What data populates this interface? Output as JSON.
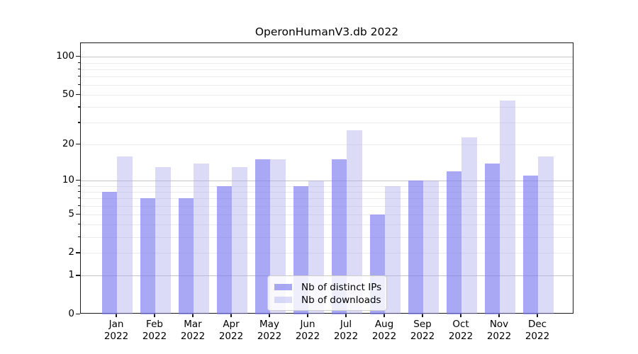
{
  "chart_data": {
    "type": "bar",
    "title": "OperonHumanV3.db 2022",
    "categories": [
      "Jan",
      "Feb",
      "Mar",
      "Apr",
      "May",
      "Jun",
      "Jul",
      "Aug",
      "Sep",
      "Oct",
      "Nov",
      "Dec"
    ],
    "year_label": "2022",
    "series": [
      {
        "name": "Nb of distinct IPs",
        "values": [
          8,
          7,
          7,
          9,
          15,
          9,
          15,
          5,
          10,
          12,
          14,
          11
        ],
        "color": "rgba(121,121,238,0.65)"
      },
      {
        "name": "Nb of downloads",
        "values": [
          16,
          13,
          14,
          13,
          15,
          10,
          26,
          9,
          10,
          23,
          45,
          16
        ],
        "color": "rgba(170,170,238,0.42)"
      }
    ],
    "yscale": "log1p",
    "ylim": [
      0,
      128
    ],
    "yticks": [
      0,
      1,
      2,
      5,
      10,
      20,
      50,
      100
    ],
    "grid_major": [
      1,
      10,
      100
    ],
    "grid_minor": [
      2,
      3,
      4,
      5,
      6,
      7,
      8,
      9,
      20,
      30,
      40,
      50,
      60,
      70,
      80,
      90
    ],
    "grid": "on",
    "legend_position": "lower center",
    "xlabel": "",
    "ylabel": ""
  }
}
